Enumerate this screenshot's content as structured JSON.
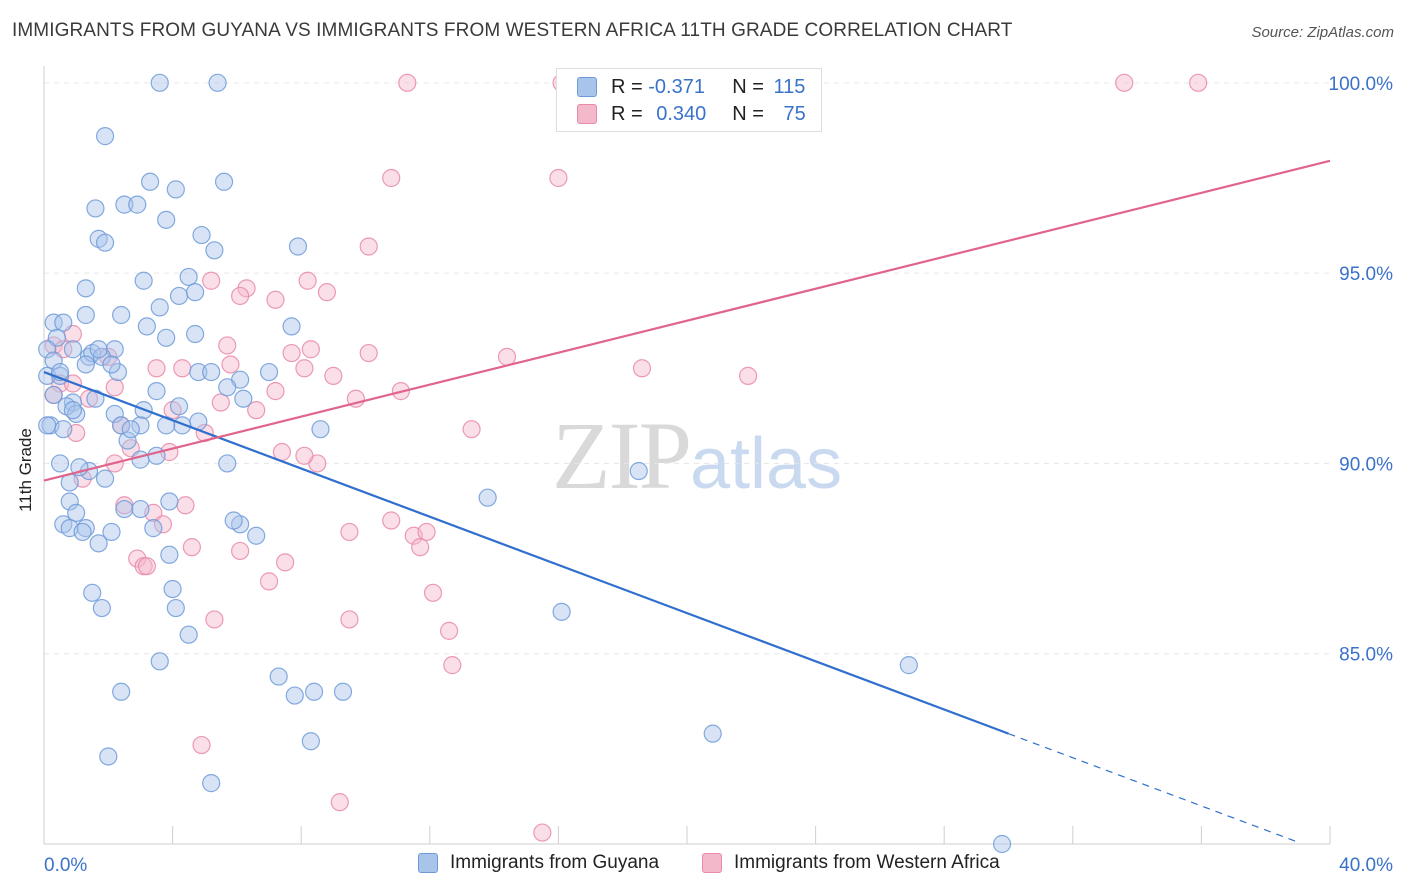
{
  "header": {
    "title": "IMMIGRANTS FROM GUYANA VS IMMIGRANTS FROM WESTERN AFRICA 11TH GRADE CORRELATION CHART",
    "source": "Source: ZipAtlas.com"
  },
  "watermark": {
    "zip": "ZIP",
    "atlas": "atlas"
  },
  "legend": {
    "r_label": "R =",
    "n_label": "N =",
    "rows": [
      {
        "r": "-0.371",
        "n": "115",
        "color": "#a9c4ea"
      },
      {
        "r": "0.340",
        "n": "75",
        "color": "#f4b8cb"
      }
    ]
  },
  "colors": {
    "blue_fill": "#a9c4ea",
    "blue_stroke": "#6f9bd8",
    "blue_line": "#2f6fce",
    "pink_fill": "#f4b8cb",
    "pink_stroke": "#e88aa8",
    "pink_line": "#e0648c",
    "tick_label": "#3b72c9",
    "grid": "#e6e6e6"
  },
  "chart_data": {
    "type": "scatter",
    "title": "IMMIGRANTS FROM GUYANA VS IMMIGRANTS FROM WESTERN AFRICA 11TH GRADE CORRELATION CHART",
    "xlabel": "",
    "ylabel": "11th Grade",
    "xlim": [
      0,
      40
    ],
    "ylim": [
      80.0,
      100.6
    ],
    "x_tick_labels": [
      {
        "value": 0,
        "label": "0.0%"
      },
      {
        "value": 40,
        "label": "40.0%"
      }
    ],
    "y_tick_labels": [
      {
        "value": 100,
        "label": "100.0%"
      },
      {
        "value": 95,
        "label": "95.0%"
      },
      {
        "value": 90,
        "label": "90.0%"
      },
      {
        "value": 85,
        "label": "85.0%"
      }
    ],
    "grid": true,
    "legend_position": "top-center",
    "series": [
      {
        "name": "Immigrants from Guyana",
        "color": "#a9c4ea",
        "points": [
          [
            3.6,
            100.0
          ],
          [
            5.4,
            100.0
          ],
          [
            1.9,
            98.6
          ],
          [
            3.3,
            97.4
          ],
          [
            5.6,
            97.4
          ],
          [
            4.1,
            97.2
          ],
          [
            1.6,
            96.7
          ],
          [
            2.5,
            96.8
          ],
          [
            2.9,
            96.8
          ],
          [
            3.8,
            96.4
          ],
          [
            4.9,
            96.0
          ],
          [
            1.7,
            95.9
          ],
          [
            1.9,
            95.8
          ],
          [
            5.3,
            95.6
          ],
          [
            7.9,
            95.7
          ],
          [
            3.1,
            94.8
          ],
          [
            4.5,
            94.9
          ],
          [
            1.3,
            94.6
          ],
          [
            4.2,
            94.4
          ],
          [
            4.7,
            94.5
          ],
          [
            3.6,
            94.1
          ],
          [
            2.4,
            93.9
          ],
          [
            1.3,
            93.9
          ],
          [
            0.3,
            93.7
          ],
          [
            0.6,
            93.7
          ],
          [
            0.4,
            93.3
          ],
          [
            3.2,
            93.6
          ],
          [
            7.7,
            93.6
          ],
          [
            4.7,
            93.4
          ],
          [
            3.8,
            93.3
          ],
          [
            0.1,
            93.0
          ],
          [
            0.9,
            93.0
          ],
          [
            2.2,
            93.0
          ],
          [
            1.4,
            92.8
          ],
          [
            1.5,
            92.9
          ],
          [
            1.8,
            92.8
          ],
          [
            0.3,
            92.7
          ],
          [
            1.3,
            92.6
          ],
          [
            2.3,
            92.4
          ],
          [
            0.1,
            92.3
          ],
          [
            4.8,
            92.4
          ],
          [
            5.2,
            92.4
          ],
          [
            7.0,
            92.4
          ],
          [
            6.1,
            92.2
          ],
          [
            0.5,
            92.3
          ],
          [
            3.5,
            91.9
          ],
          [
            5.7,
            92.0
          ],
          [
            6.2,
            91.7
          ],
          [
            0.3,
            91.8
          ],
          [
            0.9,
            91.6
          ],
          [
            1.6,
            91.7
          ],
          [
            0.7,
            91.5
          ],
          [
            1.0,
            91.3
          ],
          [
            2.2,
            91.3
          ],
          [
            3.1,
            91.4
          ],
          [
            0.2,
            91.0
          ],
          [
            0.6,
            90.9
          ],
          [
            2.4,
            91.0
          ],
          [
            3.0,
            91.0
          ],
          [
            4.3,
            91.0
          ],
          [
            4.8,
            91.1
          ],
          [
            8.6,
            90.9
          ],
          [
            2.6,
            90.6
          ],
          [
            3.0,
            90.1
          ],
          [
            3.5,
            90.2
          ],
          [
            0.5,
            90.0
          ],
          [
            1.4,
            89.8
          ],
          [
            5.7,
            90.0
          ],
          [
            18.5,
            89.8
          ],
          [
            1.9,
            89.6
          ],
          [
            0.8,
            89.5
          ],
          [
            0.8,
            89.0
          ],
          [
            3.9,
            89.0
          ],
          [
            2.5,
            88.8
          ],
          [
            3.0,
            88.8
          ],
          [
            1.0,
            88.7
          ],
          [
            13.8,
            89.1
          ],
          [
            0.6,
            88.4
          ],
          [
            0.8,
            88.3
          ],
          [
            1.3,
            88.3
          ],
          [
            1.2,
            88.2
          ],
          [
            2.1,
            88.2
          ],
          [
            6.1,
            88.4
          ],
          [
            6.6,
            88.1
          ],
          [
            1.7,
            87.9
          ],
          [
            3.9,
            87.6
          ],
          [
            4.0,
            86.7
          ],
          [
            1.5,
            86.6
          ],
          [
            1.8,
            86.2
          ],
          [
            4.1,
            86.2
          ],
          [
            16.1,
            86.1
          ],
          [
            4.5,
            85.5
          ],
          [
            3.6,
            84.8
          ],
          [
            7.3,
            84.4
          ],
          [
            26.9,
            84.7
          ],
          [
            9.3,
            84.0
          ],
          [
            2.4,
            84.0
          ],
          [
            7.8,
            83.9
          ],
          [
            8.4,
            84.0
          ],
          [
            20.8,
            82.9
          ],
          [
            8.3,
            82.7
          ],
          [
            2.0,
            82.3
          ],
          [
            5.2,
            81.6
          ],
          [
            29.8,
            80.0
          ],
          [
            0.1,
            91.0
          ],
          [
            0.5,
            92.4
          ],
          [
            1.7,
            93.0
          ],
          [
            2.1,
            92.6
          ],
          [
            3.8,
            91.0
          ],
          [
            4.2,
            91.5
          ],
          [
            0.9,
            91.4
          ],
          [
            2.7,
            90.9
          ],
          [
            1.1,
            89.9
          ],
          [
            3.4,
            88.3
          ],
          [
            5.9,
            88.5
          ]
        ]
      },
      {
        "name": "Immigrants from Western Africa",
        "color": "#f4b8cb",
        "points": [
          [
            11.3,
            100.0
          ],
          [
            33.6,
            100.0
          ],
          [
            35.9,
            100.0
          ],
          [
            16.1,
            100.0
          ],
          [
            10.8,
            97.5
          ],
          [
            16.0,
            97.5
          ],
          [
            10.1,
            95.7
          ],
          [
            5.2,
            94.8
          ],
          [
            6.3,
            94.6
          ],
          [
            8.2,
            94.8
          ],
          [
            6.1,
            94.4
          ],
          [
            7.2,
            94.3
          ],
          [
            8.8,
            94.5
          ],
          [
            0.3,
            93.1
          ],
          [
            0.6,
            93.0
          ],
          [
            5.7,
            93.1
          ],
          [
            7.7,
            92.9
          ],
          [
            8.3,
            93.0
          ],
          [
            10.1,
            92.9
          ],
          [
            14.4,
            92.8
          ],
          [
            2.0,
            92.8
          ],
          [
            18.6,
            92.5
          ],
          [
            3.5,
            92.5
          ],
          [
            4.3,
            92.5
          ],
          [
            5.8,
            92.6
          ],
          [
            8.1,
            92.5
          ],
          [
            21.9,
            92.3
          ],
          [
            0.5,
            92.1
          ],
          [
            0.9,
            92.1
          ],
          [
            2.2,
            92.0
          ],
          [
            9.0,
            92.3
          ],
          [
            7.2,
            91.9
          ],
          [
            11.1,
            91.9
          ],
          [
            0.3,
            91.8
          ],
          [
            1.4,
            91.7
          ],
          [
            9.7,
            91.7
          ],
          [
            5.5,
            91.6
          ],
          [
            4.0,
            91.4
          ],
          [
            6.6,
            91.4
          ],
          [
            1.0,
            90.8
          ],
          [
            5.0,
            90.8
          ],
          [
            13.3,
            90.9
          ],
          [
            2.7,
            90.4
          ],
          [
            3.9,
            90.3
          ],
          [
            7.4,
            90.3
          ],
          [
            8.5,
            90.0
          ],
          [
            2.2,
            90.0
          ],
          [
            1.2,
            89.6
          ],
          [
            2.5,
            88.9
          ],
          [
            4.4,
            88.9
          ],
          [
            3.4,
            88.7
          ],
          [
            10.8,
            88.5
          ],
          [
            3.7,
            88.4
          ],
          [
            9.5,
            88.2
          ],
          [
            11.5,
            88.1
          ],
          [
            11.9,
            88.2
          ],
          [
            4.6,
            87.8
          ],
          [
            6.1,
            87.7
          ],
          [
            11.7,
            87.8
          ],
          [
            2.9,
            87.5
          ],
          [
            3.1,
            87.3
          ],
          [
            3.2,
            87.3
          ],
          [
            7.5,
            87.4
          ],
          [
            7.0,
            86.9
          ],
          [
            12.1,
            86.6
          ],
          [
            5.3,
            85.9
          ],
          [
            9.5,
            85.9
          ],
          [
            12.6,
            85.6
          ],
          [
            12.7,
            84.7
          ],
          [
            4.9,
            82.6
          ],
          [
            9.2,
            81.1
          ],
          [
            15.5,
            80.3
          ],
          [
            8.1,
            90.2
          ],
          [
            2.4,
            91.0
          ],
          [
            0.9,
            93.4
          ]
        ]
      }
    ],
    "trendlines": [
      {
        "series": "Immigrants from Guyana",
        "x": [
          0.0,
          30.0
        ],
        "y": [
          92.4,
          82.9
        ],
        "dashed_extension_to_x": 39.0
      },
      {
        "series": "Immigrants from Western Africa",
        "x": [
          0.0,
          40.0
        ],
        "y": [
          89.55,
          97.95
        ]
      }
    ]
  },
  "bottom_legend": [
    {
      "label": "Immigrants from Guyana",
      "color": "#a9c4ea"
    },
    {
      "label": "Immigrants from Western Africa",
      "color": "#f4b8cb"
    }
  ]
}
